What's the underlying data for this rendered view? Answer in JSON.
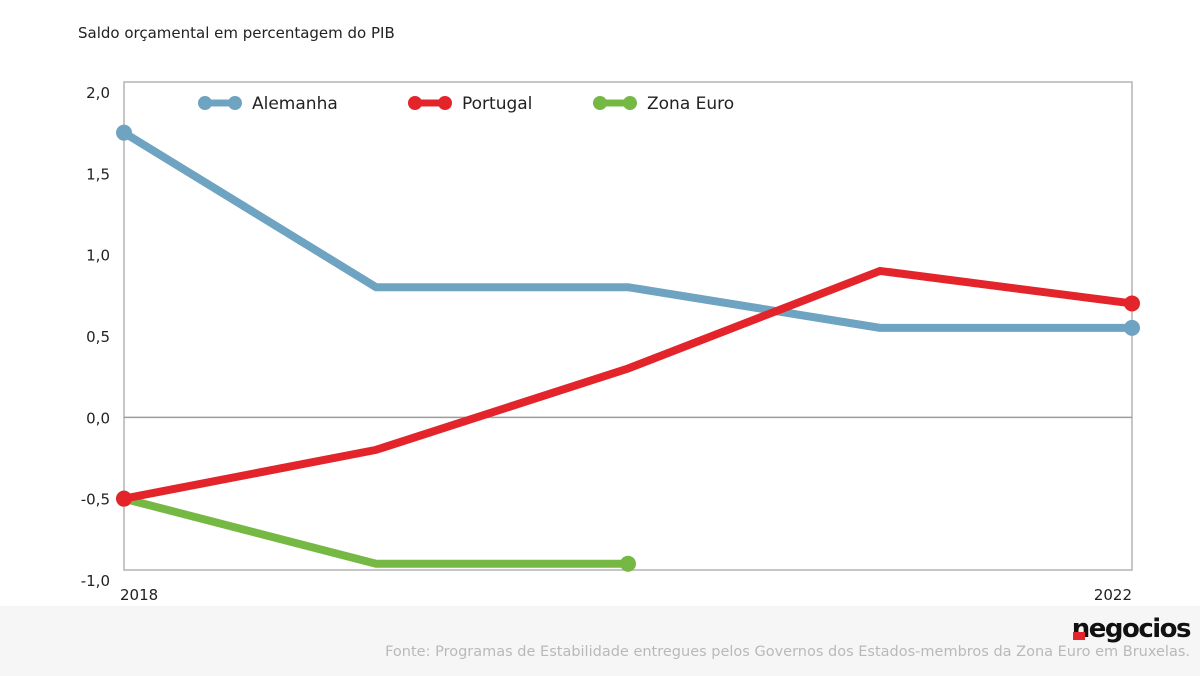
{
  "chart_data": {
    "type": "line",
    "title": "Saldo orçamental em percentagem do PIB",
    "x": [
      "2018",
      "2019",
      "2020",
      "2021",
      "2022"
    ],
    "x_tick_labels_shown": [
      "2018",
      "2022"
    ],
    "y_ticks": [
      "2,0",
      "1,5",
      "1,0",
      "0,5",
      "0,0",
      "-0,5",
      "-1,0"
    ],
    "y_tick_values": [
      2.0,
      1.5,
      1.0,
      0.5,
      0.0,
      -0.5,
      -1.0
    ],
    "ylim": [
      -1.0,
      2.0
    ],
    "grid": false,
    "legend_position": "top",
    "series": [
      {
        "name": "Alemanha",
        "color": "#6ea3c1",
        "values": [
          1.75,
          0.8,
          0.8,
          0.55,
          0.55
        ]
      },
      {
        "name": "Portugal",
        "color": "#e3242b",
        "values": [
          -0.5,
          -0.2,
          0.3,
          0.9,
          0.7
        ]
      },
      {
        "name": "Zona Euro",
        "color": "#75b843",
        "values": [
          -0.5,
          -0.9,
          -0.9,
          null,
          null
        ]
      }
    ]
  },
  "footer": {
    "brand": "negocios",
    "source": "Fonte: Programas de Estabilidade entregues pelos Governos dos Estados-membros da Zona Euro em Bruxelas."
  }
}
